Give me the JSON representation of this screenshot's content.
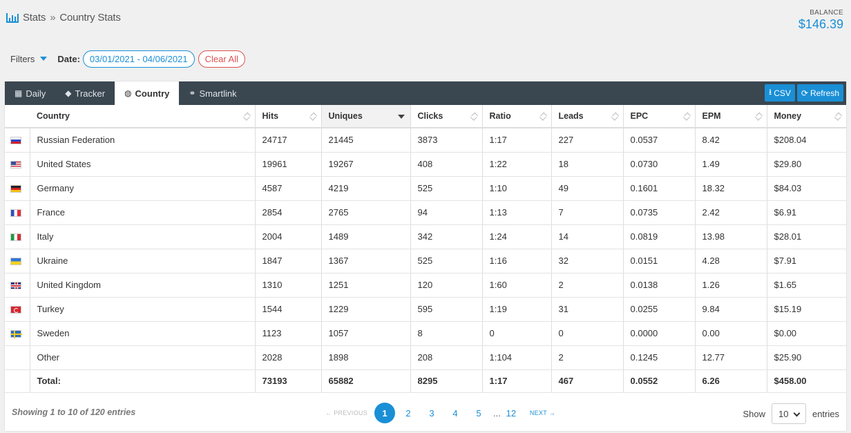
{
  "breadcrumb": {
    "root": "Stats",
    "separator": "»",
    "current": "Country Stats"
  },
  "balance": {
    "label": "BALANCE",
    "value": "$146.39"
  },
  "filters": {
    "label": "Filters",
    "date_label": "Date:",
    "date_range": "03/01/2021 - 04/06/2021",
    "clear_label": "Clear All"
  },
  "tabs": [
    {
      "label": "Daily",
      "icon": "calendar-icon",
      "glyph": "▦"
    },
    {
      "label": "Tracker",
      "icon": "tag-icon",
      "glyph": "◆"
    },
    {
      "label": "Country",
      "icon": "globe-icon",
      "glyph": "◍"
    },
    {
      "label": "Smartlink",
      "icon": "link-icon",
      "glyph": "⚭"
    }
  ],
  "actions": {
    "csv_label": "CSV",
    "refresh_label": "Refresh"
  },
  "columns": [
    "Country",
    "Hits",
    "Uniques",
    "Clicks",
    "Ratio",
    "Leads",
    "EPC",
    "EPM",
    "Money"
  ],
  "rows": [
    {
      "flag": "ru",
      "country": "Russian Federation",
      "hits": "24717",
      "uniques": "21445",
      "clicks": "3873",
      "ratio": "1:17",
      "leads": "227",
      "epc": "0.0537",
      "epm": "8.42",
      "money": "$208.04"
    },
    {
      "flag": "us",
      "country": "United States",
      "hits": "19961",
      "uniques": "19267",
      "clicks": "408",
      "ratio": "1:22",
      "leads": "18",
      "epc": "0.0730",
      "epm": "1.49",
      "money": "$29.80"
    },
    {
      "flag": "de",
      "country": "Germany",
      "hits": "4587",
      "uniques": "4219",
      "clicks": "525",
      "ratio": "1:10",
      "leads": "49",
      "epc": "0.1601",
      "epm": "18.32",
      "money": "$84.03"
    },
    {
      "flag": "fr",
      "country": "France",
      "hits": "2854",
      "uniques": "2765",
      "clicks": "94",
      "ratio": "1:13",
      "leads": "7",
      "epc": "0.0735",
      "epm": "2.42",
      "money": "$6.91"
    },
    {
      "flag": "it",
      "country": "Italy",
      "hits": "2004",
      "uniques": "1489",
      "clicks": "342",
      "ratio": "1:24",
      "leads": "14",
      "epc": "0.0819",
      "epm": "13.98",
      "money": "$28.01"
    },
    {
      "flag": "ua",
      "country": "Ukraine",
      "hits": "1847",
      "uniques": "1367",
      "clicks": "525",
      "ratio": "1:16",
      "leads": "32",
      "epc": "0.0151",
      "epm": "4.28",
      "money": "$7.91"
    },
    {
      "flag": "gb",
      "country": "United Kingdom",
      "hits": "1310",
      "uniques": "1251",
      "clicks": "120",
      "ratio": "1:60",
      "leads": "2",
      "epc": "0.0138",
      "epm": "1.26",
      "money": "$1.65"
    },
    {
      "flag": "tr",
      "country": "Turkey",
      "hits": "1544",
      "uniques": "1229",
      "clicks": "595",
      "ratio": "1:19",
      "leads": "31",
      "epc": "0.0255",
      "epm": "9.84",
      "money": "$15.19"
    },
    {
      "flag": "se",
      "country": "Sweden",
      "hits": "1123",
      "uniques": "1057",
      "clicks": "8",
      "ratio": "0",
      "leads": "0",
      "epc": "0.0000",
      "epm": "0.00",
      "money": "$0.00"
    },
    {
      "flag": "",
      "country": "Other",
      "hits": "2028",
      "uniques": "1898",
      "clicks": "208",
      "ratio": "1:104",
      "leads": "2",
      "epc": "0.1245",
      "epm": "12.77",
      "money": "$25.90"
    }
  ],
  "total": {
    "label": "Total:",
    "hits": "73193",
    "uniques": "65882",
    "clicks": "8295",
    "ratio": "1:17",
    "leads": "467",
    "epc": "0.0552",
    "epm": "6.26",
    "money": "$458.00"
  },
  "footer": {
    "info": "Showing 1 to 10 of 120 entries",
    "prev": "← PREVIOUS",
    "next": "NEXT →",
    "pages": [
      "1",
      "2",
      "3",
      "4",
      "5"
    ],
    "ellipsis": "...",
    "last_page": "12",
    "show_label": "Show",
    "page_size": "10",
    "entries_label": "entries"
  },
  "colors": {
    "accent": "#1a8fd6",
    "danger": "#e05050",
    "tabbar": "#3a4650"
  }
}
